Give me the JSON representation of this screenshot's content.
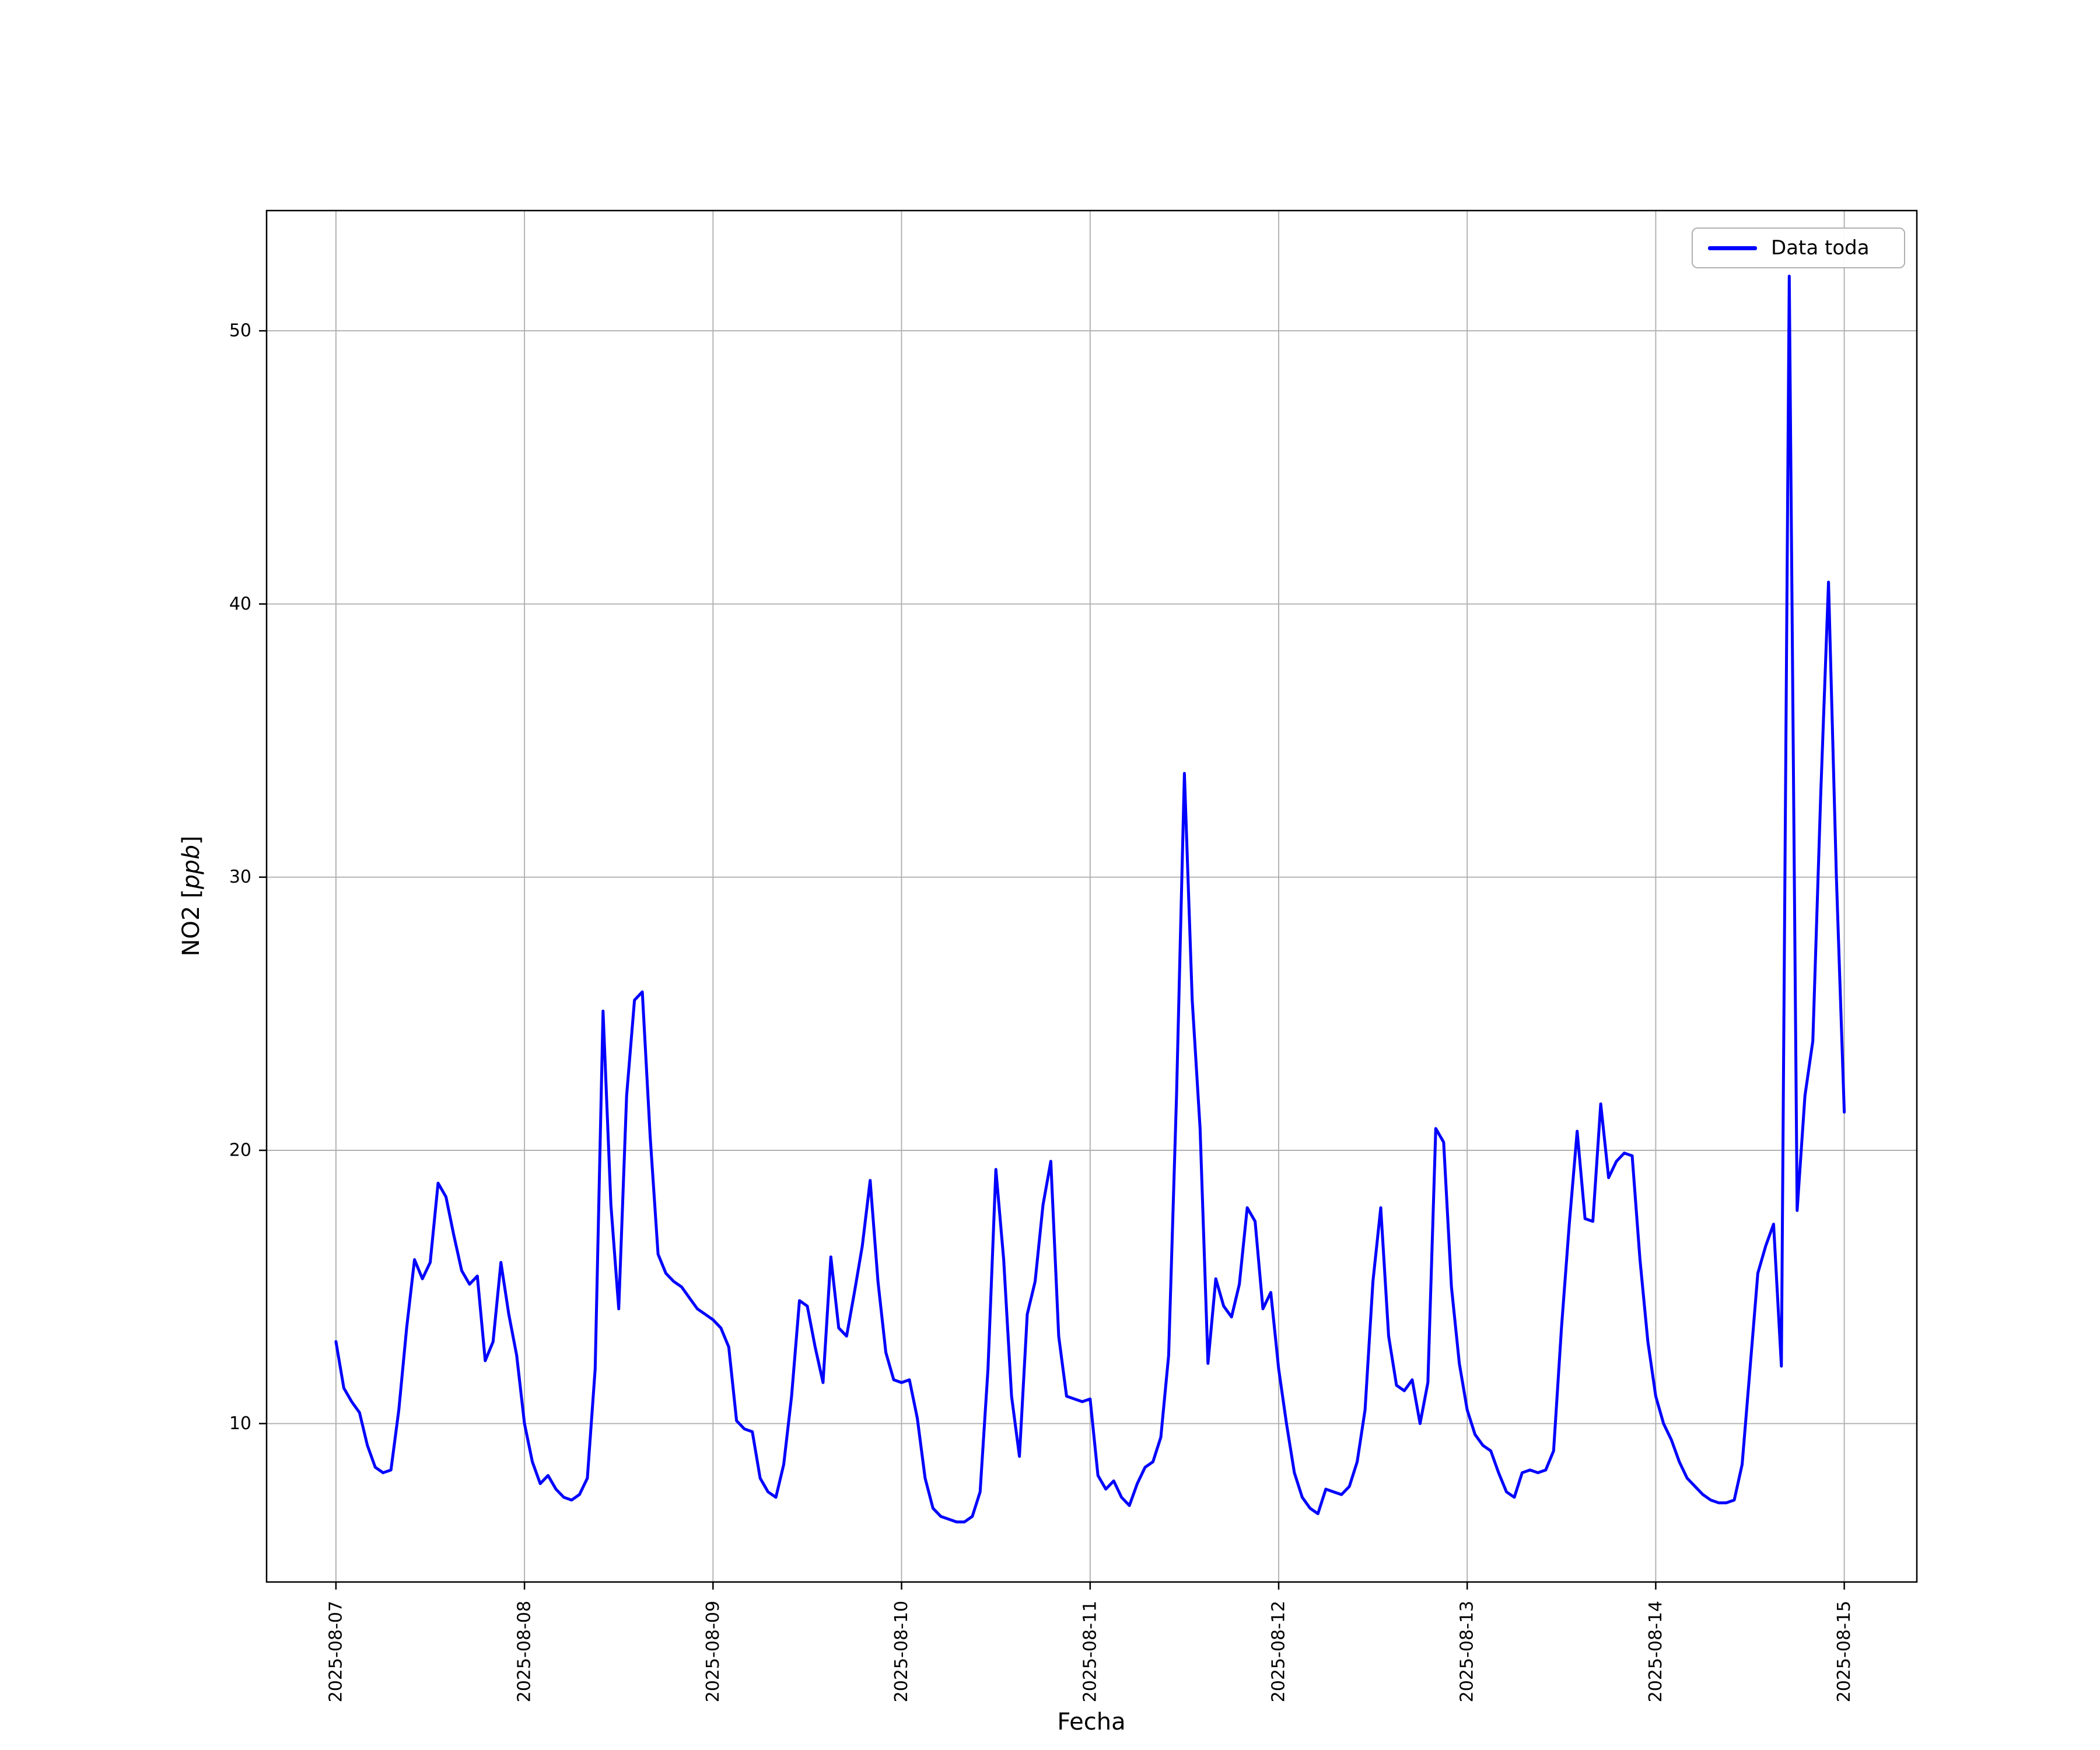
{
  "figure": {
    "background": "#ffffff",
    "xlabel": "Fecha",
    "ylabel": "NO2 [ppb]",
    "ylabel_prefix": "NO2 [",
    "ylabel_italic": "ppb",
    "ylabel_suffix": "]",
    "legend": {
      "label": "Data toda"
    }
  },
  "chart_data": {
    "type": "line",
    "title": "",
    "xlabel": "Fecha",
    "ylabel": "NO2 [ppb]",
    "grid": true,
    "legend_position": "upper right",
    "line_color": "#0000ff",
    "grid_color": "#b0b0b0",
    "frame_color": "#000000",
    "y_ticks": [
      10,
      20,
      30,
      40,
      50
    ],
    "ylim": [
      4.2,
      54.4
    ],
    "xlim_days": [
      -0.368,
      8.385
    ],
    "x_tick_labels": [
      "2025-08-07",
      "2025-08-08",
      "2025-08-09",
      "2025-08-10",
      "2025-08-11",
      "2025-08-12",
      "2025-08-13",
      "2025-08-14",
      "2025-08-15"
    ],
    "x_start": "2025-08-07 00:00",
    "interval_hours": 1,
    "series": [
      {
        "name": "Data toda",
        "color": "#0000ff",
        "values": [
          13.0,
          11.3,
          10.8,
          10.4,
          9.2,
          8.4,
          8.2,
          8.3,
          10.5,
          13.5,
          16.0,
          15.3,
          15.9,
          18.8,
          18.3,
          16.9,
          15.6,
          15.1,
          15.4,
          12.3,
          13.0,
          15.9,
          14.0,
          12.5,
          10.0,
          8.6,
          7.8,
          8.1,
          7.6,
          7.3,
          7.2,
          7.4,
          8.0,
          12.0,
          25.1,
          18.0,
          14.2,
          22.0,
          25.5,
          25.8,
          20.5,
          16.2,
          15.5,
          15.2,
          15.0,
          14.6,
          14.2,
          14.0,
          13.8,
          13.5,
          12.8,
          10.1,
          9.8,
          9.7,
          8.0,
          7.5,
          7.3,
          8.5,
          11.0,
          14.5,
          14.3,
          12.8,
          11.5,
          16.1,
          13.5,
          13.2,
          14.8,
          16.5,
          18.9,
          15.2,
          12.6,
          11.6,
          11.5,
          11.6,
          10.2,
          8.0,
          6.9,
          6.6,
          6.5,
          6.4,
          6.4,
          6.6,
          7.5,
          12.0,
          19.3,
          16.0,
          11.0,
          8.8,
          14.0,
          15.2,
          18.0,
          19.6,
          13.2,
          11.0,
          10.9,
          10.8,
          10.9,
          8.1,
          7.6,
          7.9,
          7.3,
          7.0,
          7.8,
          8.4,
          8.6,
          9.5,
          12.5,
          22.0,
          33.8,
          25.5,
          20.8,
          12.2,
          15.3,
          14.3,
          13.9,
          15.1,
          17.9,
          17.4,
          14.2,
          14.8,
          12.0,
          10.0,
          8.2,
          7.3,
          6.9,
          6.7,
          7.6,
          7.5,
          7.4,
          7.7,
          8.6,
          10.5,
          15.2,
          17.9,
          13.2,
          11.4,
          11.2,
          11.6,
          10.0,
          11.5,
          20.8,
          20.3,
          15.0,
          12.2,
          10.5,
          9.6,
          9.2,
          9.0,
          8.2,
          7.5,
          7.3,
          8.2,
          8.3,
          8.2,
          8.3,
          9.0,
          13.5,
          17.3,
          20.7,
          17.5,
          17.4,
          21.7,
          19.0,
          19.6,
          19.9,
          19.8,
          16.0,
          13.0,
          11.0,
          10.0,
          9.4,
          8.6,
          8.0,
          7.7,
          7.4,
          7.2,
          7.1,
          7.1,
          7.2,
          8.5,
          12.0,
          15.5,
          16.5,
          17.3,
          12.1,
          52.0,
          17.8,
          22.0,
          24.0,
          33.0,
          40.8,
          30.0,
          21.4
        ]
      }
    ]
  }
}
